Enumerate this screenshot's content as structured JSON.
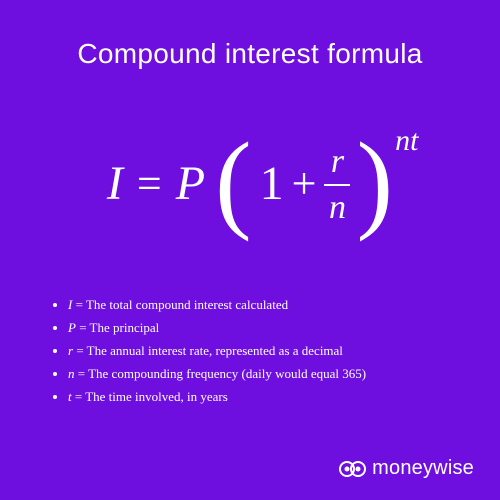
{
  "background_color": "#6e0fe0",
  "text_color": "#ffffff",
  "title": "Compound interest formula",
  "title_fontsize": 28,
  "formula": {
    "I": "I",
    "eq": "=",
    "P": "P",
    "lparen": "(",
    "one": "1",
    "plus": "+",
    "frac_num": "r",
    "frac_den": "n",
    "rparen": ")",
    "exp": "nt",
    "var_fontsize": 48,
    "paren_fontsize": 110,
    "frac_fontsize": 34,
    "exp_fontsize": 30
  },
  "legend": {
    "fontsize": 13,
    "items": [
      {
        "sym": "I",
        "desc": " = The total compound interest calculated"
      },
      {
        "sym": "P",
        "desc": " = The principal"
      },
      {
        "sym": "r",
        "desc": " = The annual interest rate, represented as a decimal"
      },
      {
        "sym": "n",
        "desc": " = The compounding frequency (daily would equal 365)"
      },
      {
        "sym": "t",
        "desc": " = The time involved, in years"
      }
    ]
  },
  "brand": {
    "name": "moneywise",
    "fontsize": 20
  }
}
